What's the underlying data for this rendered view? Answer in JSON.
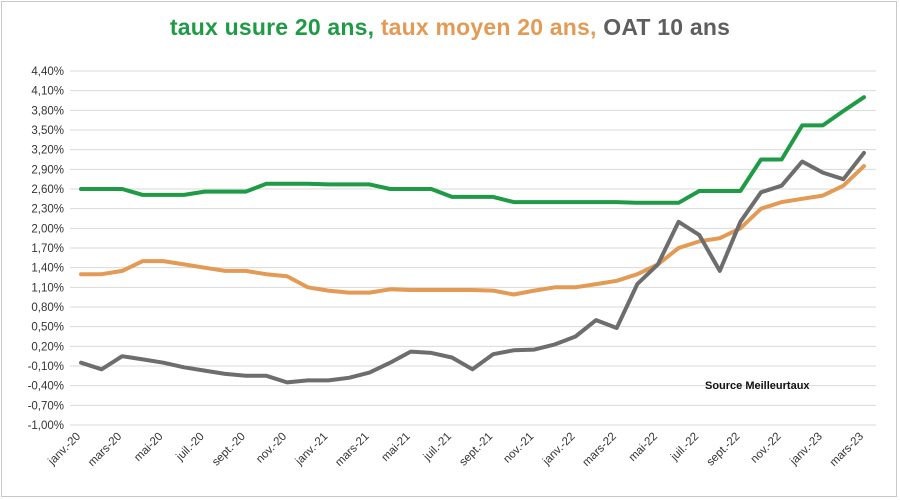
{
  "title": {
    "part1": "taux usure 20 ans,",
    "part2": "taux moyen 20 ans,",
    "part3": "OAT 10 ans"
  },
  "colors": {
    "usure": "#1f9a45",
    "moyen": "#e39a55",
    "oat": "#6d6d6d",
    "grid": "#d9d9d9"
  },
  "source_text": "Source Meilleurtaux",
  "chart_data": {
    "type": "line",
    "title": "taux usure 20 ans, taux moyen 20 ans, OAT 10 ans",
    "ylim": [
      -1.0,
      4.4
    ],
    "yticks": [
      -1.0,
      -0.7,
      -0.4,
      -0.1,
      0.2,
      0.5,
      0.8,
      1.1,
      1.4,
      1.7,
      2.0,
      2.3,
      2.6,
      2.9,
      3.2,
      3.5,
      3.8,
      4.1,
      4.4
    ],
    "ytick_labels": [
      "-1,00%",
      "-0,70%",
      "-0,40%",
      "-0,10%",
      "0,20%",
      "0,50%",
      "0,80%",
      "1,10%",
      "1,40%",
      "1,70%",
      "2,00%",
      "2,30%",
      "2,60%",
      "2,90%",
      "3,20%",
      "3,50%",
      "3,80%",
      "4,10%",
      "4,40%"
    ],
    "x": [
      "janv.-20",
      "févr.-20",
      "mars-20",
      "avr.-20",
      "mai-20",
      "juin-20",
      "juil.-20",
      "août-20",
      "sept.-20",
      "oct.-20",
      "nov.-20",
      "déc.-20",
      "janv.-21",
      "févr.-21",
      "mars-21",
      "avr.-21",
      "mai-21",
      "juin-21",
      "juil.-21",
      "août-21",
      "sept.-21",
      "oct.-21",
      "nov.-21",
      "déc.-21",
      "janv.-22",
      "févr.-22",
      "mars-22",
      "avr.-22",
      "mai-22",
      "juin-22",
      "juil.-22",
      "août-22",
      "sept.-22",
      "oct.-22",
      "nov.-22",
      "déc.-22",
      "janv.-23",
      "févr.-23",
      "mars-23"
    ],
    "x_tick_labels": [
      "janv.-20",
      "",
      "mars-20",
      "",
      "mai-20",
      "",
      "juil.-20",
      "",
      "sept.-20",
      "",
      "nov.-20",
      "",
      "janv.-21",
      "",
      "mars-21",
      "",
      "mai-21",
      "",
      "juil.-21",
      "",
      "sept.-21",
      "",
      "nov.-21",
      "",
      "janv.-22",
      "",
      "mars-22",
      "",
      "mai-22",
      "",
      "juil.-22",
      "",
      "sept.-22",
      "",
      "nov.-22",
      "",
      "janv.-23",
      "",
      "mars-23"
    ],
    "series": [
      {
        "name": "taux usure 20 ans",
        "color": "#1f9a45",
        "values": [
          2.6,
          2.6,
          2.6,
          2.51,
          2.51,
          2.51,
          2.56,
          2.56,
          2.56,
          2.68,
          2.68,
          2.68,
          2.67,
          2.67,
          2.67,
          2.6,
          2.6,
          2.6,
          2.48,
          2.48,
          2.48,
          2.4,
          2.4,
          2.4,
          2.4,
          2.4,
          2.4,
          2.39,
          2.39,
          2.39,
          2.57,
          2.57,
          2.57,
          3.05,
          3.05,
          3.57,
          3.57,
          3.79,
          4.0
        ]
      },
      {
        "name": "taux moyen 20 ans",
        "color": "#e39a55",
        "values": [
          1.3,
          1.3,
          1.35,
          1.5,
          1.5,
          1.45,
          1.4,
          1.35,
          1.35,
          1.3,
          1.27,
          1.1,
          1.05,
          1.02,
          1.02,
          1.07,
          1.06,
          1.06,
          1.06,
          1.06,
          1.05,
          0.99,
          1.05,
          1.1,
          1.1,
          1.15,
          1.2,
          1.3,
          1.45,
          1.7,
          1.8,
          1.85,
          2.0,
          2.3,
          2.4,
          2.45,
          2.5,
          2.65,
          2.95
        ]
      },
      {
        "name": "OAT 10 ans",
        "color": "#6d6d6d",
        "values": [
          -0.05,
          -0.15,
          0.05,
          0.0,
          -0.05,
          -0.12,
          -0.17,
          -0.22,
          -0.25,
          -0.25,
          -0.35,
          -0.32,
          -0.32,
          -0.28,
          -0.2,
          -0.05,
          0.12,
          0.1,
          0.03,
          -0.15,
          0.08,
          0.14,
          0.15,
          0.23,
          0.35,
          0.6,
          0.48,
          1.15,
          1.45,
          2.1,
          1.9,
          1.35,
          2.1,
          2.55,
          2.65,
          3.02,
          2.85,
          2.75,
          3.15
        ]
      }
    ],
    "grid": true,
    "legend": "none"
  }
}
